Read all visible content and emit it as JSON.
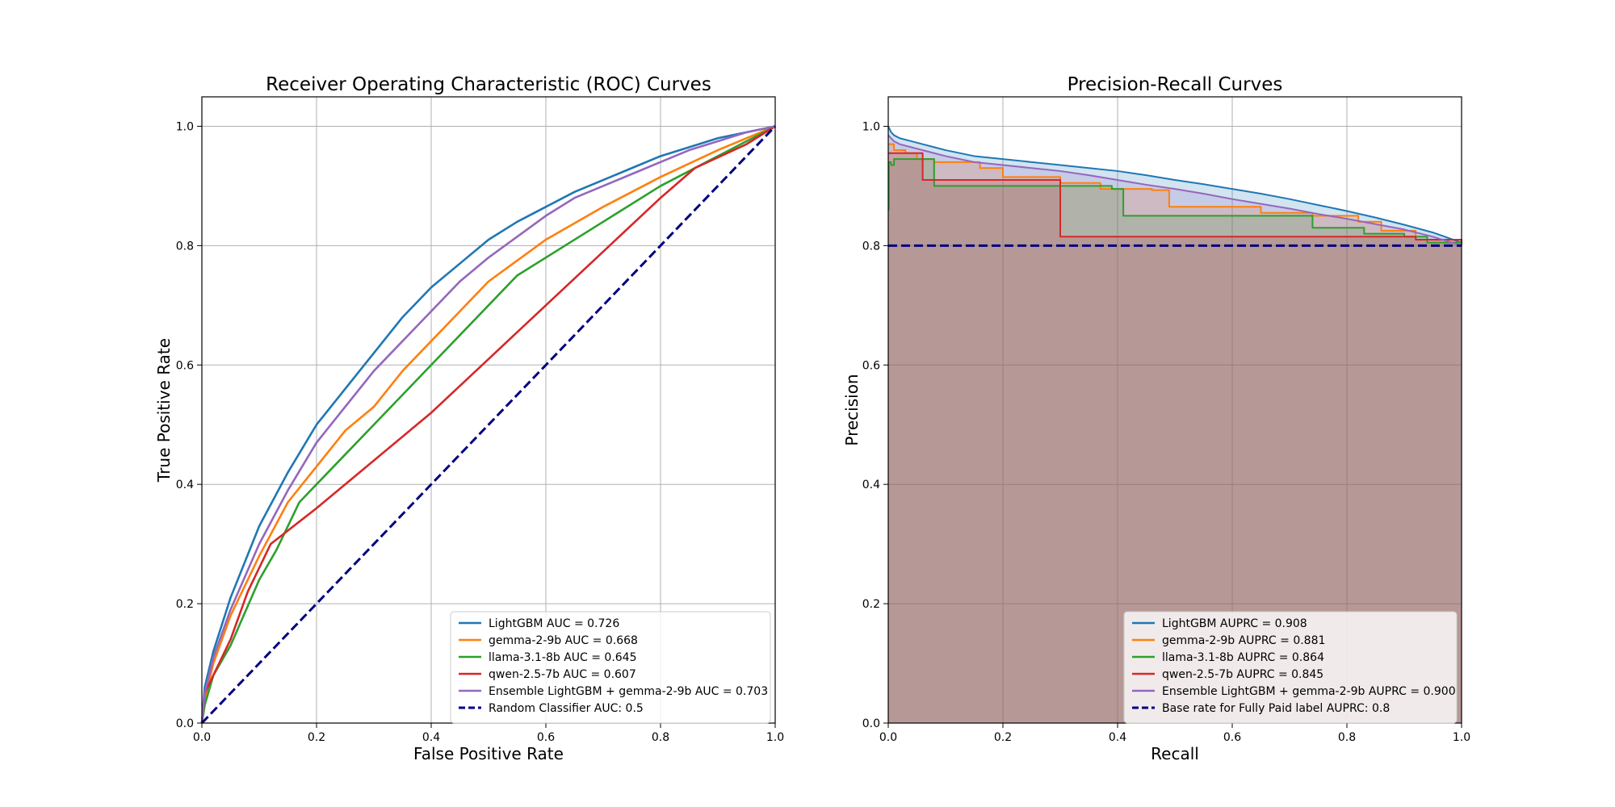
{
  "chart_data": [
    {
      "type": "line",
      "title": "Receiver Operating Characteristic (ROC) Curves",
      "xlabel": "False Positive Rate",
      "ylabel": "True Positive Rate",
      "xlim": [
        0,
        1
      ],
      "ylim": [
        0,
        1
      ],
      "xticks": [
        "0.0",
        "0.2",
        "0.4",
        "0.6",
        "0.8",
        "1.0"
      ],
      "yticks": [
        "0.0",
        "0.2",
        "0.4",
        "0.6",
        "0.8",
        "1.0"
      ],
      "grid": true,
      "legend_position": "lower-right",
      "series": [
        {
          "name": "LightGBM AUC = 0.726",
          "color": "#1f77b4",
          "dashed": false,
          "x": [
            0,
            0.005,
            0.02,
            0.05,
            0.1,
            0.15,
            0.2,
            0.25,
            0.3,
            0.35,
            0.4,
            0.45,
            0.5,
            0.55,
            0.6,
            0.65,
            0.7,
            0.75,
            0.8,
            0.85,
            0.9,
            0.95,
            1.0
          ],
          "y": [
            0,
            0.06,
            0.12,
            0.21,
            0.33,
            0.42,
            0.5,
            0.56,
            0.62,
            0.68,
            0.73,
            0.77,
            0.81,
            0.84,
            0.865,
            0.89,
            0.91,
            0.93,
            0.95,
            0.965,
            0.98,
            0.99,
            1.0
          ]
        },
        {
          "name": "gemma-2-9b AUC = 0.668",
          "color": "#ff7f0e",
          "dashed": false,
          "x": [
            0,
            0.005,
            0.02,
            0.05,
            0.1,
            0.15,
            0.2,
            0.25,
            0.3,
            0.35,
            0.4,
            0.45,
            0.5,
            0.55,
            0.6,
            0.7,
            0.8,
            0.9,
            1.0
          ],
          "y": [
            0,
            0.04,
            0.1,
            0.18,
            0.28,
            0.37,
            0.43,
            0.49,
            0.53,
            0.59,
            0.64,
            0.69,
            0.74,
            0.775,
            0.81,
            0.865,
            0.915,
            0.96,
            1.0
          ]
        },
        {
          "name": "llama-3.1-8b AUC = 0.645",
          "color": "#2ca02c",
          "dashed": false,
          "x": [
            0,
            0.005,
            0.02,
            0.05,
            0.1,
            0.13,
            0.17,
            0.2,
            0.25,
            0.3,
            0.35,
            0.4,
            0.45,
            0.5,
            0.55,
            0.6,
            0.7,
            0.8,
            0.9,
            1.0
          ],
          "y": [
            0,
            0.03,
            0.08,
            0.13,
            0.24,
            0.29,
            0.37,
            0.4,
            0.45,
            0.5,
            0.55,
            0.6,
            0.65,
            0.7,
            0.75,
            0.78,
            0.84,
            0.9,
            0.95,
            1.0
          ]
        },
        {
          "name": "qwen-2.5-7b AUC = 0.607",
          "color": "#d62728",
          "dashed": false,
          "x": [
            0,
            0.005,
            0.02,
            0.05,
            0.08,
            0.12,
            0.2,
            0.3,
            0.4,
            0.5,
            0.6,
            0.7,
            0.8,
            0.86,
            0.95,
            1.0
          ],
          "y": [
            0,
            0.05,
            0.08,
            0.14,
            0.22,
            0.3,
            0.36,
            0.44,
            0.52,
            0.61,
            0.7,
            0.79,
            0.88,
            0.93,
            0.97,
            1.0
          ]
        },
        {
          "name": "Ensemble LightGBM + gemma-2-9b AUC = 0.703",
          "color": "#9467bd",
          "dashed": false,
          "x": [
            0,
            0.005,
            0.02,
            0.05,
            0.1,
            0.15,
            0.2,
            0.25,
            0.3,
            0.35,
            0.4,
            0.45,
            0.5,
            0.55,
            0.6,
            0.65,
            0.7,
            0.75,
            0.8,
            0.85,
            0.9,
            0.95,
            1.0
          ],
          "y": [
            0,
            0.05,
            0.11,
            0.19,
            0.3,
            0.39,
            0.47,
            0.53,
            0.59,
            0.64,
            0.69,
            0.74,
            0.78,
            0.815,
            0.85,
            0.88,
            0.9,
            0.92,
            0.94,
            0.96,
            0.975,
            0.99,
            1.0
          ]
        },
        {
          "name": "Random Classifier AUC: 0.5",
          "color": "#000080",
          "dashed": true,
          "x": [
            0,
            1
          ],
          "y": [
            0,
            1
          ]
        }
      ]
    },
    {
      "type": "line",
      "title": "Precision-Recall Curves",
      "xlabel": "Recall",
      "ylabel": "Precision",
      "xlim": [
        0,
        1
      ],
      "ylim": [
        0,
        1
      ],
      "xticks": [
        "0.0",
        "0.2",
        "0.4",
        "0.6",
        "0.8",
        "1.0"
      ],
      "yticks": [
        "0.0",
        "0.2",
        "0.4",
        "0.6",
        "0.8",
        "1.0"
      ],
      "grid": true,
      "legend_position": "lower-right",
      "series": [
        {
          "name": "LightGBM AUPRC = 0.908",
          "color": "#1f77b4",
          "dashed": false,
          "x": [
            0,
            0.005,
            0.01,
            0.02,
            0.04,
            0.06,
            0.08,
            0.1,
            0.15,
            0.2,
            0.25,
            0.3,
            0.35,
            0.4,
            0.45,
            0.5,
            0.55,
            0.6,
            0.65,
            0.7,
            0.75,
            0.8,
            0.85,
            0.9,
            0.95,
            1.0
          ],
          "y": [
            1.0,
            0.99,
            0.985,
            0.98,
            0.975,
            0.97,
            0.965,
            0.96,
            0.95,
            0.945,
            0.94,
            0.935,
            0.93,
            0.925,
            0.918,
            0.91,
            0.903,
            0.895,
            0.887,
            0.878,
            0.868,
            0.858,
            0.847,
            0.835,
            0.822,
            0.805
          ]
        },
        {
          "name": "gemma-2-9b AUPRC = 0.881",
          "color": "#ff7f0e",
          "dashed": false,
          "step": true,
          "x": [
            0,
            0.005,
            0.01,
            0.03,
            0.05,
            0.08,
            0.16,
            0.2,
            0.3,
            0.37,
            0.46,
            0.49,
            0.65,
            0.74,
            0.82,
            0.86,
            0.92,
            1.0
          ],
          "y": [
            0.97,
            0.97,
            0.96,
            0.955,
            0.945,
            0.94,
            0.93,
            0.915,
            0.905,
            0.895,
            0.893,
            0.865,
            0.855,
            0.85,
            0.84,
            0.825,
            0.81,
            0.805
          ]
        },
        {
          "name": "llama-3.1-8b AUPRC = 0.864",
          "color": "#2ca02c",
          "dashed": false,
          "step": true,
          "x": [
            0,
            0.001,
            0.005,
            0.01,
            0.08,
            0.19,
            0.25,
            0.35,
            0.39,
            0.41,
            0.74,
            0.83,
            0.9,
            0.94,
            1.0
          ],
          "y": [
            0.86,
            0.94,
            0.935,
            0.945,
            0.9,
            0.9,
            0.9,
            0.9,
            0.895,
            0.85,
            0.83,
            0.82,
            0.815,
            0.805,
            0.8
          ]
        },
        {
          "name": "qwen-2.5-7b AUPRC = 0.845",
          "color": "#d62728",
          "dashed": false,
          "step": true,
          "x": [
            0,
            0.005,
            0.06,
            0.3,
            0.92,
            1.0
          ],
          "y": [
            0.955,
            0.955,
            0.91,
            0.815,
            0.81,
            0.805
          ]
        },
        {
          "name": "Ensemble LightGBM + gemma-2-9b AUPRC = 0.900",
          "color": "#9467bd",
          "dashed": false,
          "x": [
            0,
            0.005,
            0.01,
            0.02,
            0.04,
            0.06,
            0.08,
            0.1,
            0.15,
            0.2,
            0.25,
            0.3,
            0.35,
            0.4,
            0.45,
            0.5,
            0.55,
            0.6,
            0.65,
            0.7,
            0.75,
            0.8,
            0.85,
            0.9,
            0.95,
            1.0
          ],
          "y": [
            0.985,
            0.98,
            0.975,
            0.97,
            0.965,
            0.96,
            0.955,
            0.95,
            0.94,
            0.935,
            0.93,
            0.925,
            0.918,
            0.91,
            0.902,
            0.895,
            0.887,
            0.878,
            0.87,
            0.862,
            0.853,
            0.845,
            0.836,
            0.827,
            0.815,
            0.8
          ]
        },
        {
          "name": "Base rate for Fully Paid label AUPRC: 0.8",
          "color": "#000080",
          "dashed": true,
          "x": [
            0,
            1
          ],
          "y": [
            0.8,
            0.8
          ]
        }
      ]
    }
  ]
}
